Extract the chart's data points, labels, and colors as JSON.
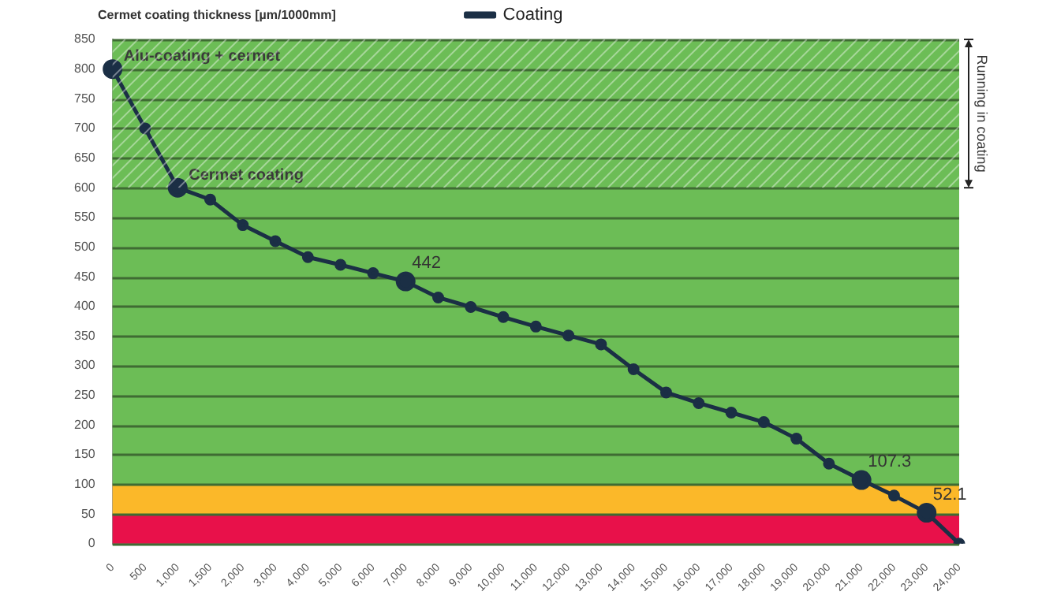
{
  "chart_data": {
    "type": "line",
    "title": "Cermet coating thickness [µm/1000mm]",
    "categories": [
      "0",
      "500",
      "1,000",
      "1,500",
      "2,000",
      "3,000",
      "4,000",
      "5,000",
      "6,000",
      "7,000",
      "8,000",
      "9,000",
      "10,000",
      "11,000",
      "12,000",
      "13,000",
      "14,000",
      "15,000",
      "16,000",
      "17,000",
      "18,000",
      "19,000",
      "20,000",
      "21,000",
      "22,000",
      "23,000",
      "24,000"
    ],
    "series": [
      {
        "name": "Coating",
        "color": "#1b2f45",
        "values": [
          800,
          700,
          600,
          580,
          537,
          510,
          483,
          470,
          456,
          442,
          415,
          399,
          382,
          366,
          351,
          336,
          294,
          255,
          237,
          221,
          205,
          177,
          135,
          107.3,
          81,
          52.1,
          0
        ],
        "value_labels": [
          null,
          null,
          null,
          null,
          null,
          null,
          null,
          null,
          null,
          "442",
          null,
          null,
          null,
          null,
          null,
          null,
          null,
          null,
          null,
          null,
          null,
          null,
          null,
          "107.3",
          null,
          "52.1",
          null
        ]
      }
    ],
    "ylim": [
      0,
      850
    ],
    "yticks": [
      0,
      50,
      100,
      150,
      200,
      250,
      300,
      350,
      400,
      450,
      500,
      550,
      600,
      650,
      700,
      750,
      800,
      850
    ],
    "grid": "y",
    "legend": "top",
    "marker": "circle",
    "line_style": "solid",
    "bands": [
      {
        "axis": "y",
        "from": 0,
        "to": 50,
        "color": "#e8114a"
      },
      {
        "axis": "y",
        "from": 50,
        "to": 100,
        "color": "#fbb829"
      },
      {
        "axis": "y",
        "from": 100,
        "to": 850,
        "color": "#6cbd56"
      },
      {
        "axis": "y",
        "from": 600,
        "to": 850,
        "label": "Running in coating",
        "color": "#6cbd56"
      }
    ],
    "annotations": [
      {
        "text": "Alu-coating + cermet",
        "x": "0",
        "y": 800
      },
      {
        "text": "Cermet coating",
        "x": "1,000",
        "y": 600
      }
    ]
  }
}
